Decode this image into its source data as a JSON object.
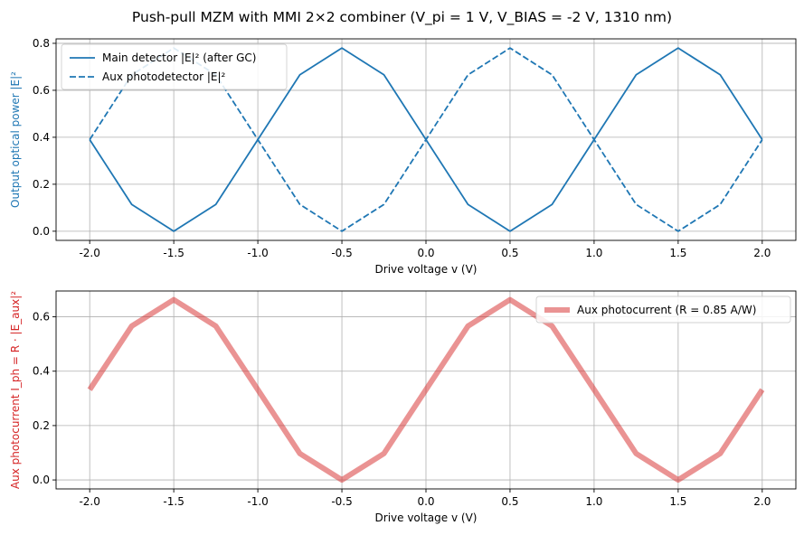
{
  "chart_data": {
    "title": "Push-pull MZM with MMI 2×2 combiner  (V_pi = 1 V, V_BIAS = -2 V, 1310 nm)",
    "colors": {
      "blue": "#1f77b4",
      "red": "#d62728"
    },
    "panels": [
      {
        "type": "line",
        "xlabel": "Drive voltage v (V)",
        "ylabel": "Output optical power |E|²",
        "ylabel_color": "#1f77b4",
        "xlim": [
          -2.2,
          2.2
        ],
        "ylim": [
          -0.039,
          0.819
        ],
        "xticks": [
          "-2.0",
          "-1.5",
          "-1.0",
          "-0.5",
          "0.0",
          "0.5",
          "1.0",
          "1.5",
          "2.0"
        ],
        "yticks": [
          "0.0",
          "0.2",
          "0.4",
          "0.6",
          "0.8"
        ],
        "grid": true,
        "legend_position": "upper-left",
        "series": [
          {
            "name": "Main detector |E|² (after GC)",
            "style": "solid",
            "x": [
              -2.0,
              -1.75,
              -1.5,
              -1.25,
              -1.0,
              -0.75,
              -0.5,
              -0.25,
              0.0,
              0.25,
              0.5,
              0.75,
              1.0,
              1.25,
              1.5,
              1.75,
              2.0
            ],
            "y": [
              0.39,
              0.114,
              0.0,
              0.114,
              0.39,
              0.666,
              0.78,
              0.666,
              0.39,
              0.114,
              0.0,
              0.114,
              0.39,
              0.666,
              0.78,
              0.666,
              0.39
            ]
          },
          {
            "name": "Aux photodetector |E|²",
            "style": "dashed",
            "x": [
              -2.0,
              -1.75,
              -1.5,
              -1.25,
              -1.0,
              -0.75,
              -0.5,
              -0.25,
              0.0,
              0.25,
              0.5,
              0.75,
              1.0,
              1.25,
              1.5,
              1.75,
              2.0
            ],
            "y": [
              0.39,
              0.666,
              0.78,
              0.666,
              0.39,
              0.114,
              0.0,
              0.114,
              0.39,
              0.666,
              0.78,
              0.666,
              0.39,
              0.114,
              0.0,
              0.114,
              0.39
            ]
          }
        ]
      },
      {
        "type": "line",
        "xlabel": "Drive voltage v (V)",
        "ylabel": "Aux photocurrent  I_ph = R · |E_aux|²",
        "ylabel_color": "#d62728",
        "xlim": [
          -2.2,
          2.2
        ],
        "ylim": [
          -0.033,
          0.695
        ],
        "xticks": [
          "-2.0",
          "-1.5",
          "-1.0",
          "-0.5",
          "0.0",
          "0.5",
          "1.0",
          "1.5",
          "2.0"
        ],
        "yticks": [
          "0.0",
          "0.2",
          "0.4",
          "0.6"
        ],
        "grid": true,
        "legend_position": "upper-right",
        "series": [
          {
            "name": "Aux photocurrent (R = 0.85 A/W)",
            "style": "thick-translucent",
            "x": [
              -2.0,
              -1.75,
              -1.5,
              -1.25,
              -1.0,
              -0.75,
              -0.5,
              -0.25,
              0.0,
              0.25,
              0.5,
              0.75,
              1.0,
              1.25,
              1.5,
              1.75,
              2.0
            ],
            "y": [
              0.332,
              0.566,
              0.663,
              0.566,
              0.332,
              0.097,
              0.0,
              0.097,
              0.332,
              0.566,
              0.663,
              0.566,
              0.332,
              0.097,
              0.0,
              0.097,
              0.332
            ]
          }
        ]
      }
    ]
  }
}
